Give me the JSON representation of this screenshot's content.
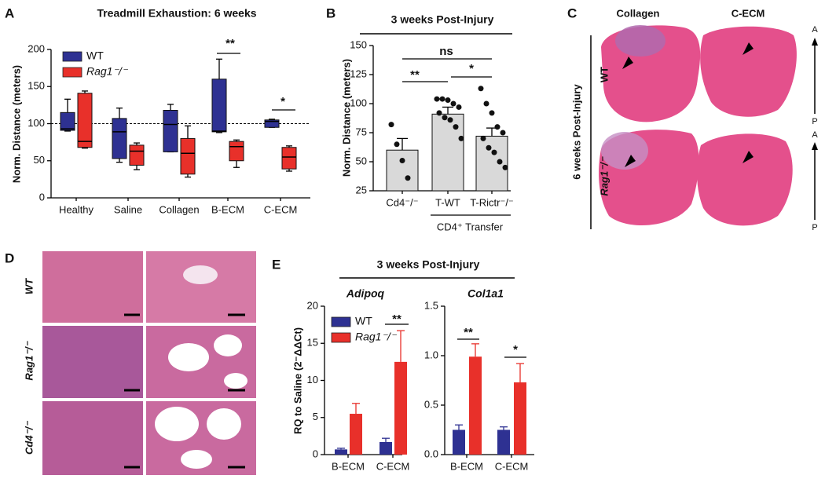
{
  "chart_data": [
    {
      "type": "box",
      "panel": "A",
      "title": "Treadmill Exhaustion: 6 weeks",
      "y_label": "Norm. Distance (meters)",
      "categories": [
        "Healthy",
        "Saline",
        "Collagen",
        "B-ECM",
        "C-ECM"
      ],
      "series": [
        {
          "name": "WT",
          "color": "#2e3192",
          "min": [
            90,
            48,
            62,
            88,
            95
          ],
          "q1": [
            91,
            53,
            62,
            89,
            95
          ],
          "median": [
            93,
            89,
            99,
            90,
            103
          ],
          "q3": [
            115,
            107,
            118,
            160,
            105
          ],
          "max": [
            133,
            121,
            126,
            187,
            106
          ]
        },
        {
          "name": "Rag1⁻/⁻",
          "color": "#e8302a",
          "min": [
            67,
            38,
            28,
            41,
            36
          ],
          "q1": [
            68,
            44,
            32,
            50,
            39
          ],
          "median": [
            76,
            63,
            60,
            69,
            55
          ],
          "q3": [
            141,
            71,
            80,
            76,
            68
          ],
          "max": [
            144,
            74,
            97,
            78,
            70
          ]
        }
      ],
      "ylim": [
        0,
        200
      ],
      "yticks": [
        0,
        50,
        100,
        150,
        200
      ],
      "reference_line": 100,
      "annotations": [
        "**",
        "*"
      ]
    },
    {
      "type": "bar",
      "panel": "B",
      "title": "3 weeks Post-Injury",
      "y_label": "Norm. Distance (meters)",
      "categories": [
        "Cd4⁻/⁻",
        "T-WT",
        "T-Rictr⁻/⁻"
      ],
      "group_label": "CD4⁺ Transfer",
      "values": [
        60,
        91,
        72
      ],
      "errors": [
        10,
        6,
        7
      ],
      "points": [
        [
          82,
          65,
          51,
          36
        ],
        [
          104,
          104,
          103,
          100,
          97,
          92,
          88,
          86,
          80,
          70
        ],
        [
          113,
          100,
          92,
          80,
          75,
          70,
          62,
          58,
          50,
          45
        ]
      ],
      "color": "#d9d9d9",
      "ylim": [
        25,
        150
      ],
      "yticks": [
        25,
        50,
        75,
        100,
        125,
        150
      ],
      "annotations": [
        "**",
        "ns",
        "*"
      ]
    },
    {
      "type": "bar",
      "panel": "E",
      "subtitle": "Adipoq",
      "y_label": "RQ to Saline (2⁻ΔΔCt)",
      "categories": [
        "B-ECM",
        "C-ECM"
      ],
      "series": [
        {
          "name": "WT",
          "color": "#2e3192",
          "values": [
            0.7,
            1.7
          ],
          "errors": [
            0.15,
            0.5
          ]
        },
        {
          "name": "Rag1⁻/⁻",
          "color": "#e8302a",
          "values": [
            5.5,
            12.5
          ],
          "errors": [
            1.4,
            4.2
          ]
        }
      ],
      "ylim": [
        0,
        20
      ],
      "yticks": [
        0,
        5,
        10,
        15,
        20
      ],
      "annotations": [
        "**"
      ]
    },
    {
      "type": "bar",
      "subtitle": "Col1a1",
      "categories": [
        "B-ECM",
        "C-ECM"
      ],
      "series": [
        {
          "color": "#2e3192",
          "values": [
            0.25,
            0.25
          ],
          "errors": [
            0.05,
            0.03
          ]
        },
        {
          "color": "#e8302a",
          "values": [
            0.99,
            0.73
          ],
          "errors": [
            0.13,
            0.19
          ]
        }
      ],
      "ylim": [
        0,
        1.5
      ],
      "yticks": [
        {
          "value": 0,
          "label": "0.0"
        },
        0.5,
        {
          "value": 1,
          "label": "1.0"
        },
        1.5
      ],
      "annotations": [
        "**",
        "*"
      ]
    }
  ],
  "panel_e": {
    "title": "3 weeks Post-Injury"
  },
  "panel_c": {
    "panel": "C",
    "columns": [
      "Collagen",
      "C-ECM"
    ],
    "rows": [
      "WT",
      "Rag1⁻/⁻"
    ],
    "side_label": "6 weeks Post-Injury",
    "orientation": [
      "A",
      "P"
    ]
  },
  "panel_d": {
    "panel": "D",
    "rows": [
      "WT",
      "Rag1⁻/⁻",
      "Cd4⁻/⁻"
    ]
  }
}
